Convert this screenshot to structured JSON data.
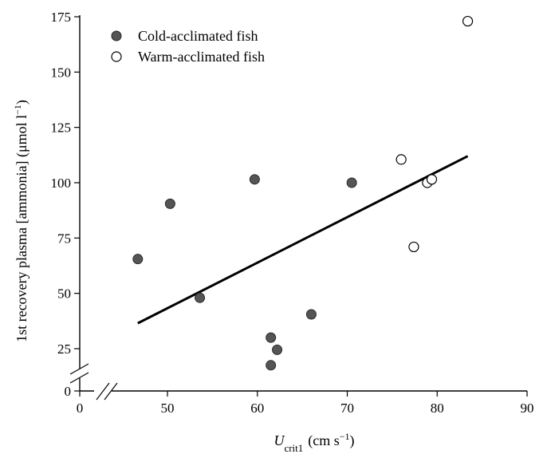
{
  "chart_data": {
    "type": "scatter",
    "title": "",
    "xlabel": {
      "main": "U",
      "sub": "crit1",
      "units": "(cm s",
      "units_sup": "−1",
      "units_end": ")"
    },
    "ylabel": {
      "main": "1st recovery plasma [ammonia] (μmol l",
      "sup": "−1",
      "end": ")"
    },
    "xlim": [
      0,
      90
    ],
    "ylim": [
      0,
      175
    ],
    "x_ticks": [
      0,
      10,
      20,
      30,
      40,
      50,
      60,
      70,
      80,
      90
    ],
    "x_tick_labels": [
      "0",
      "",
      "",
      "",
      "",
      "50",
      "60",
      "70",
      "80",
      "90"
    ],
    "y_ticks": [
      0,
      25,
      50,
      75,
      100,
      125,
      150,
      175
    ],
    "y_tick_labels": [
      "0",
      "25",
      "50",
      "75",
      "100",
      "125",
      "150",
      "175"
    ],
    "axis_breaks": {
      "x": [
        10,
        45
      ],
      "y": [
        0,
        25
      ]
    },
    "legend_position": "top-left",
    "series": [
      {
        "name": "Cold-acclimated fish",
        "marker": "filled-circle",
        "color": "#555555",
        "points": [
          {
            "x": 46.7,
            "y": 65.5
          },
          {
            "x": 50.3,
            "y": 90.5
          },
          {
            "x": 53.6,
            "y": 48.0
          },
          {
            "x": 59.7,
            "y": 101.5
          },
          {
            "x": 61.5,
            "y": 30.0
          },
          {
            "x": 61.5,
            "y": 17.5
          },
          {
            "x": 62.2,
            "y": 24.5
          },
          {
            "x": 66.0,
            "y": 40.5
          },
          {
            "x": 70.5,
            "y": 100.0
          }
        ]
      },
      {
        "name": "Warm-acclimated fish",
        "marker": "open-circle",
        "color": "#ffffff",
        "points": [
          {
            "x": 76.0,
            "y": 110.5
          },
          {
            "x": 77.4,
            "y": 71.0
          },
          {
            "x": 78.9,
            "y": 100.0
          },
          {
            "x": 79.4,
            "y": 101.5
          },
          {
            "x": 83.4,
            "y": 173.0
          }
        ]
      }
    ],
    "regression_line": {
      "x": [
        46.7,
        83.4
      ],
      "y": [
        36.5,
        112.0
      ]
    }
  }
}
